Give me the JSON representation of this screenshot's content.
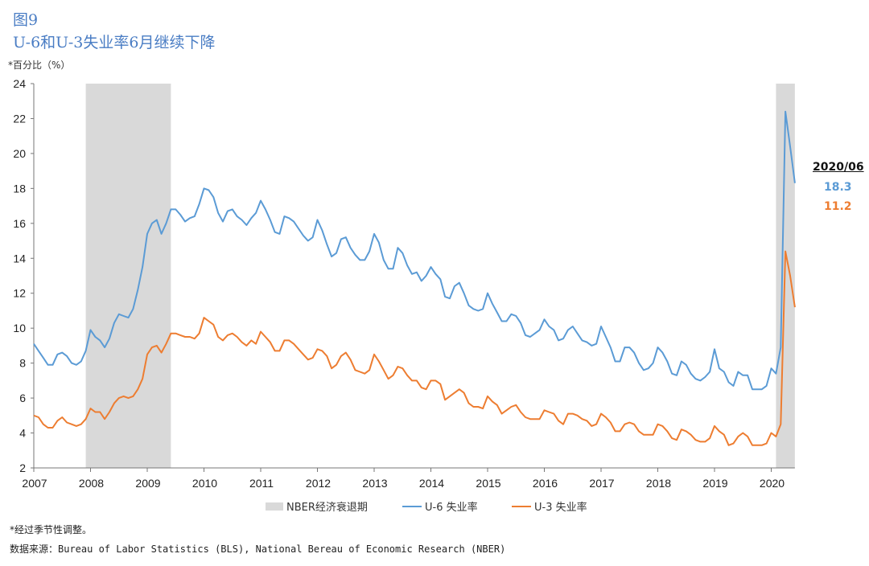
{
  "figure_label": "图9",
  "title": "U-6和U-3失业率6月继续下降",
  "unit_note": "*百分比（%）",
  "footnote": "*经过季节性调整。",
  "source": "数据来源：Bureau of Labor Statistics (BLS), National Bereau of Economic Research (NBER)",
  "annotation": {
    "date": "2020/06",
    "u6": "18.3",
    "u3": "11.2"
  },
  "colors": {
    "u6": "#5b9bd5",
    "u3": "#ed7d31",
    "recession": "#d9d9d9",
    "title": "#4a7dc4"
  },
  "chart_data": {
    "type": "line",
    "x_start": "2007-01",
    "x_end": "2020-06",
    "frequency": "monthly",
    "xticks": [
      "2007",
      "2008",
      "2009",
      "2010",
      "2011",
      "2012",
      "2013",
      "2014",
      "2015",
      "2016",
      "2017",
      "2018",
      "2019",
      "2020"
    ],
    "yticks": [
      "2",
      "4",
      "6",
      "8",
      "10",
      "12",
      "14",
      "16",
      "18",
      "20",
      "22",
      "24"
    ],
    "ylim": [
      2,
      24
    ],
    "grid": false,
    "legend": "bottom",
    "recessions": [
      {
        "name": "NBER经济衰退期",
        "start": "2007-12",
        "end": "2009-06"
      },
      {
        "name": "NBER经济衰退期",
        "start": "2020-02",
        "end": "2020-06"
      }
    ],
    "series": [
      {
        "name": "U-6 失业率",
        "values": [
          9.1,
          8.7,
          8.3,
          7.9,
          7.9,
          8.5,
          8.6,
          8.4,
          8.0,
          7.9,
          8.1,
          8.7,
          9.9,
          9.5,
          9.3,
          8.9,
          9.4,
          10.3,
          10.8,
          10.7,
          10.6,
          11.1,
          12.2,
          13.5,
          15.4,
          16.0,
          16.2,
          15.4,
          16.0,
          16.8,
          16.8,
          16.5,
          16.1,
          16.3,
          16.4,
          17.1,
          18.0,
          17.9,
          17.5,
          16.6,
          16.1,
          16.7,
          16.8,
          16.4,
          16.2,
          15.9,
          16.3,
          16.6,
          17.3,
          16.8,
          16.2,
          15.5,
          15.4,
          16.4,
          16.3,
          16.1,
          15.7,
          15.3,
          15.0,
          15.2,
          16.2,
          15.6,
          14.8,
          14.1,
          14.3,
          15.1,
          15.2,
          14.6,
          14.2,
          13.9,
          13.9,
          14.4,
          15.4,
          14.9,
          13.9,
          13.4,
          13.4,
          14.6,
          14.3,
          13.6,
          13.1,
          13.2,
          12.7,
          13.0,
          13.5,
          13.1,
          12.8,
          11.8,
          11.7,
          12.4,
          12.6,
          12.0,
          11.3,
          11.1,
          11.0,
          11.1,
          12.0,
          11.4,
          10.9,
          10.4,
          10.4,
          10.8,
          10.7,
          10.3,
          9.6,
          9.5,
          9.7,
          9.9,
          10.5,
          10.1,
          9.9,
          9.3,
          9.4,
          9.9,
          10.1,
          9.7,
          9.3,
          9.2,
          9.0,
          9.1,
          10.1,
          9.5,
          8.9,
          8.1,
          8.1,
          8.9,
          8.9,
          8.6,
          8.0,
          7.6,
          7.7,
          8.0,
          8.9,
          8.6,
          8.1,
          7.4,
          7.3,
          8.1,
          7.9,
          7.4,
          7.1,
          7.0,
          7.2,
          7.5,
          8.8,
          7.7,
          7.5,
          6.9,
          6.7,
          7.5,
          7.3,
          7.3,
          6.5,
          6.5,
          6.5,
          6.7,
          7.7,
          7.4,
          8.9,
          22.4,
          20.4,
          18.3
        ]
      },
      {
        "name": "U-3 失业率",
        "values": [
          5.0,
          4.9,
          4.5,
          4.3,
          4.3,
          4.7,
          4.9,
          4.6,
          4.5,
          4.4,
          4.5,
          4.8,
          5.4,
          5.2,
          5.2,
          4.8,
          5.2,
          5.7,
          6.0,
          6.1,
          6.0,
          6.1,
          6.5,
          7.1,
          8.5,
          8.9,
          9.0,
          8.6,
          9.1,
          9.7,
          9.7,
          9.6,
          9.5,
          9.5,
          9.4,
          9.7,
          10.6,
          10.4,
          10.2,
          9.5,
          9.3,
          9.6,
          9.7,
          9.5,
          9.2,
          9.0,
          9.3,
          9.1,
          9.8,
          9.5,
          9.2,
          8.7,
          8.7,
          9.3,
          9.3,
          9.1,
          8.8,
          8.5,
          8.2,
          8.3,
          8.8,
          8.7,
          8.4,
          7.7,
          7.9,
          8.4,
          8.6,
          8.2,
          7.6,
          7.5,
          7.4,
          7.6,
          8.5,
          8.1,
          7.6,
          7.1,
          7.3,
          7.8,
          7.7,
          7.3,
          7.0,
          7.0,
          6.6,
          6.5,
          7.0,
          7.0,
          6.8,
          5.9,
          6.1,
          6.3,
          6.5,
          6.3,
          5.7,
          5.5,
          5.5,
          5.4,
          6.1,
          5.8,
          5.6,
          5.1,
          5.3,
          5.5,
          5.6,
          5.2,
          4.9,
          4.8,
          4.8,
          4.8,
          5.3,
          5.2,
          5.1,
          4.7,
          4.5,
          5.1,
          5.1,
          5.0,
          4.8,
          4.7,
          4.4,
          4.5,
          5.1,
          4.9,
          4.6,
          4.1,
          4.1,
          4.5,
          4.6,
          4.5,
          4.1,
          3.9,
          3.9,
          3.9,
          4.5,
          4.4,
          4.1,
          3.7,
          3.6,
          4.2,
          4.1,
          3.9,
          3.6,
          3.5,
          3.5,
          3.7,
          4.4,
          4.1,
          3.9,
          3.3,
          3.4,
          3.8,
          4.0,
          3.8,
          3.3,
          3.3,
          3.3,
          3.4,
          4.0,
          3.8,
          4.5,
          14.4,
          13.0,
          11.2
        ]
      }
    ]
  }
}
